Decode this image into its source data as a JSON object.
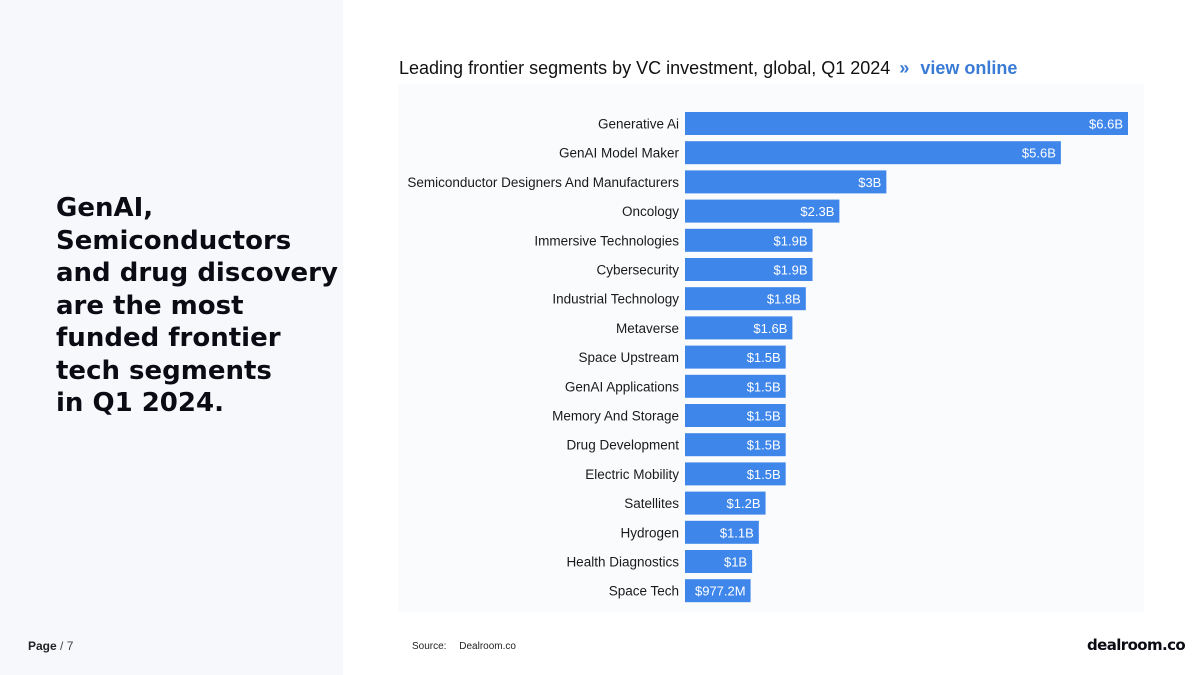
{
  "headline_lines": [
    "GenAI,",
    "Semiconductors",
    "and drug discovery",
    "are the most",
    "funded frontier",
    "tech segments",
    "in Q1 2024."
  ],
  "footer": {
    "page_label": "Page",
    "page_sep": "/ 7",
    "source_label": "Source:",
    "source_value": "Dealroom.co",
    "logo": "dealroom.co"
  },
  "chart_header": {
    "title": "Leading frontier segments by VC investment, global, Q1 2024",
    "separator": "»",
    "link_label": "view online"
  },
  "colors": {
    "bar": "#3f86eb",
    "link": "#3a7bd5",
    "panel": "#f6f8fc"
  },
  "chart_data": {
    "type": "bar",
    "orientation": "horizontal",
    "title": "Leading frontier segments by VC investment, global, Q1 2024",
    "unit": "USD",
    "categories": [
      "Generative Ai",
      "GenAI Model Maker",
      "Semiconductor Designers And Manufacturers",
      "Oncology",
      "Immersive Technologies",
      "Cybersecurity",
      "Industrial Technology",
      "Metaverse",
      "Space Upstream",
      "GenAI Applications",
      "Memory And Storage",
      "Drug Development",
      "Electric Mobility",
      "Satellites",
      "Hydrogen",
      "Health Diagnostics",
      "Space Tech"
    ],
    "values": [
      6.6,
      5.6,
      3.0,
      2.3,
      1.9,
      1.9,
      1.8,
      1.6,
      1.5,
      1.5,
      1.5,
      1.5,
      1.5,
      1.2,
      1.1,
      1.0,
      0.9772
    ],
    "value_labels": [
      "$6.6B",
      "$5.6B",
      "$3B",
      "$2.3B",
      "$1.9B",
      "$1.9B",
      "$1.8B",
      "$1.6B",
      "$1.5B",
      "$1.5B",
      "$1.5B",
      "$1.5B",
      "$1.5B",
      "$1.2B",
      "$1.1B",
      "$1B",
      "$977.2M"
    ],
    "value_unit": "billion USD",
    "xlim": [
      0,
      6.6
    ],
    "grid": false,
    "legend": "none"
  }
}
